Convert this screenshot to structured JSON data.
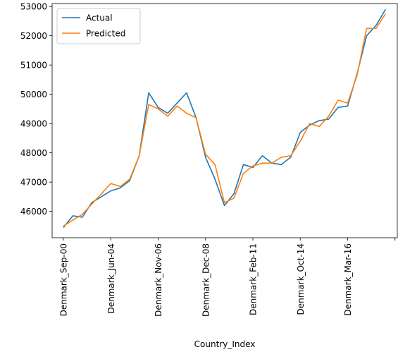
{
  "chart_data": {
    "type": "line",
    "xlabel": "Country_Index",
    "ylabel": "",
    "title": "",
    "ylim": [
      45100,
      53100
    ],
    "yticks": [
      46000,
      47000,
      48000,
      49000,
      50000,
      51000,
      52000,
      53000
    ],
    "x_tick_labels": [
      "Denmark_Sep-00",
      "Denmark_Jun-04",
      "Denmark_Nov-06",
      "Denmark_Dec-08",
      "Denmark_Feb-11",
      "Denmark_Oct-14",
      "Denmark_Mar-16"
    ],
    "x_tick_positions": [
      0,
      5,
      10,
      15,
      20,
      25,
      30
    ],
    "x_extra_tick_positions": [
      35
    ],
    "legend_position": "top-left",
    "grid": false,
    "series": [
      {
        "name": "Actual",
        "color": "#1f77b4",
        "values": [
          45450,
          45850,
          45800,
          46300,
          46500,
          46700,
          46800,
          47050,
          47900,
          50050,
          49550,
          49350,
          49700,
          50050,
          49200,
          47850,
          47100,
          46200,
          46600,
          47600,
          47500,
          47900,
          47650,
          47600,
          47850,
          48700,
          48950,
          49100,
          49150,
          49550,
          49600,
          50700,
          52000,
          52350,
          52900
        ]
      },
      {
        "name": "Predicted",
        "color": "#ff7f0e",
        "values": [
          45500,
          45700,
          45900,
          46250,
          46600,
          46950,
          46850,
          47100,
          47900,
          49650,
          49500,
          49250,
          49600,
          49350,
          49200,
          47950,
          47600,
          46300,
          46450,
          47300,
          47550,
          47650,
          47650,
          47850,
          47900,
          48400,
          49000,
          48900,
          49250,
          49800,
          49700,
          50650,
          52250,
          52250,
          52750
        ]
      }
    ]
  }
}
